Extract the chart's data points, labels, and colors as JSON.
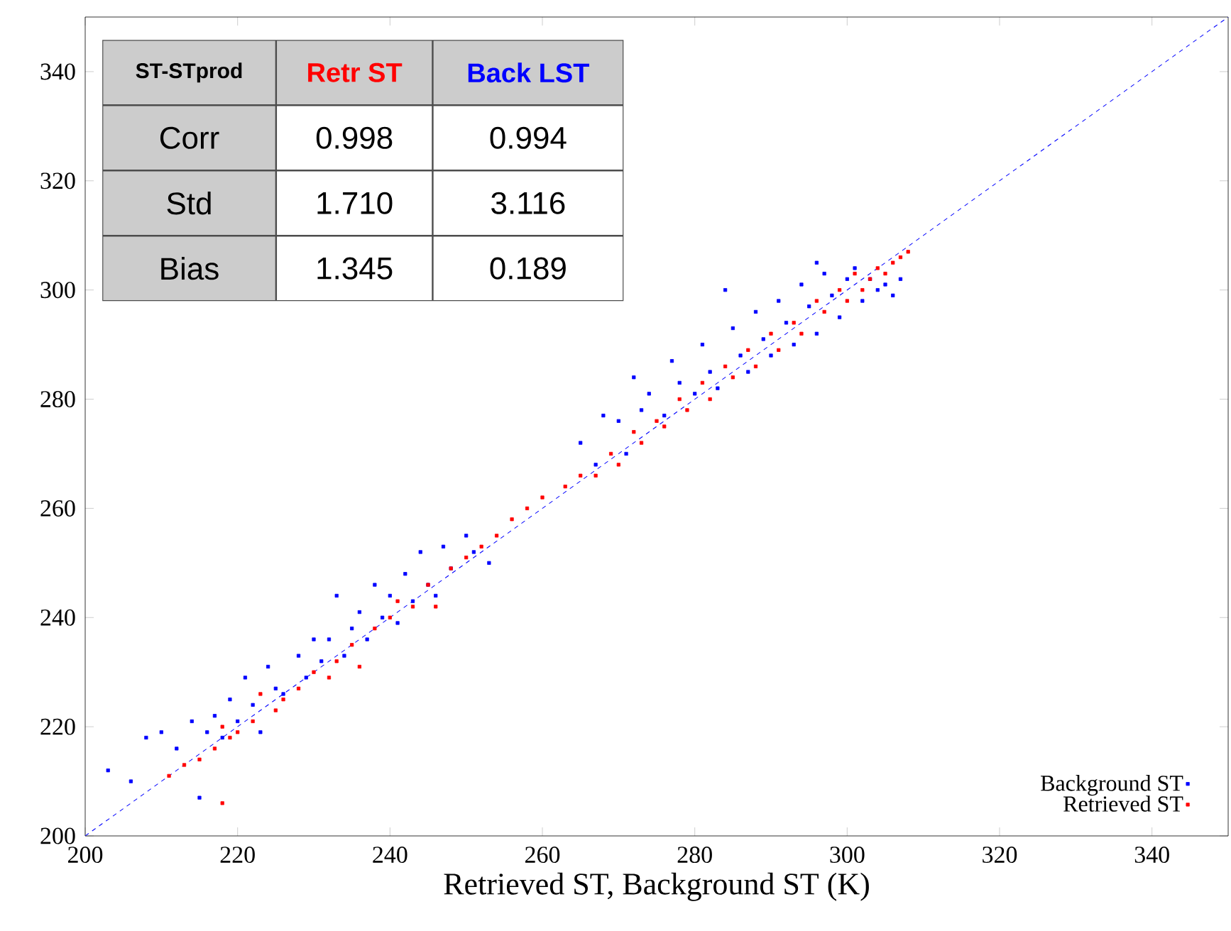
{
  "chart_data": {
    "type": "scatter",
    "xlabel": "Retrieved ST, Background ST (K)",
    "xlim": [
      200,
      350
    ],
    "ylim": [
      200,
      350
    ],
    "xticks": [
      200,
      220,
      240,
      260,
      280,
      300,
      320,
      340
    ],
    "yticks": [
      200,
      220,
      240,
      260,
      280,
      300,
      320,
      340
    ],
    "marker": "square",
    "legend": "bottom right",
    "annotations": [
      "ST-STprod",
      "Retr ST",
      "Back LST",
      "Corr",
      "0.998",
      "0.994",
      "Std",
      "1.710",
      "3.116",
      "Bias",
      "1.345",
      "0.189"
    ],
    "series": [
      {
        "name": "Background ST",
        "color": "#0000ff",
        "x": [
          203,
          206,
          208,
          210,
          212,
          214,
          215,
          216,
          217,
          218,
          219,
          220,
          221,
          222,
          223,
          224,
          225,
          226,
          228,
          229,
          230,
          231,
          232,
          233,
          234,
          235,
          236,
          237,
          238,
          239,
          240,
          241,
          242,
          243,
          244,
          245,
          246,
          247,
          248,
          250,
          251,
          253,
          265,
          267,
          268,
          270,
          271,
          272,
          273,
          274,
          276,
          277,
          278,
          280,
          281,
          282,
          283,
          285,
          286,
          287,
          288,
          289,
          290,
          291,
          292,
          293,
          294,
          295,
          296,
          297,
          298,
          299,
          300,
          301,
          302,
          303,
          304,
          305,
          306,
          307,
          296,
          284
        ],
        "values": [
          212,
          210,
          218,
          219,
          216,
          221,
          207,
          219,
          222,
          218,
          225,
          221,
          229,
          224,
          219,
          231,
          227,
          226,
          233,
          229,
          236,
          232,
          236,
          244,
          233,
          238,
          241,
          236,
          246,
          240,
          244,
          239,
          248,
          243,
          252,
          246,
          244,
          253,
          249,
          255,
          252,
          250,
          272,
          268,
          277,
          276,
          270,
          284,
          278,
          281,
          277,
          287,
          283,
          281,
          290,
          285,
          282,
          293,
          288,
          285,
          296,
          291,
          288,
          298,
          294,
          290,
          301,
          297,
          292,
          303,
          299,
          295,
          302,
          304,
          298,
          302,
          300,
          301,
          299,
          302,
          305,
          300
        ]
      },
      {
        "name": "Retrieved ST",
        "color": "#ff0000",
        "x": [
          211,
          213,
          215,
          217,
          218,
          218,
          219,
          220,
          222,
          223,
          225,
          226,
          228,
          230,
          232,
          233,
          235,
          236,
          238,
          240,
          241,
          243,
          245,
          246,
          248,
          250,
          252,
          254,
          256,
          258,
          260,
          263,
          265,
          267,
          269,
          270,
          272,
          273,
          275,
          276,
          278,
          279,
          281,
          282,
          284,
          285,
          287,
          288,
          290,
          291,
          293,
          294,
          296,
          297,
          299,
          300,
          301,
          302,
          303,
          304,
          305,
          306,
          307,
          308
        ],
        "values": [
          211,
          213,
          214,
          216,
          206,
          220,
          218,
          219,
          221,
          226,
          223,
          225,
          227,
          230,
          229,
          232,
          235,
          231,
          238,
          240,
          243,
          242,
          246,
          242,
          249,
          251,
          253,
          255,
          258,
          260,
          262,
          264,
          266,
          266,
          270,
          268,
          274,
          272,
          276,
          275,
          280,
          278,
          283,
          280,
          286,
          284,
          289,
          286,
          292,
          289,
          294,
          292,
          298,
          296,
          300,
          298,
          303,
          300,
          302,
          304,
          303,
          305,
          306,
          307
        ]
      },
      {
        "type": "line",
        "marker": "none",
        "line_style": "dashed",
        "color": "#0000ff",
        "x": [
          200,
          350
        ],
        "values": [
          200,
          350
        ]
      }
    ]
  }
}
